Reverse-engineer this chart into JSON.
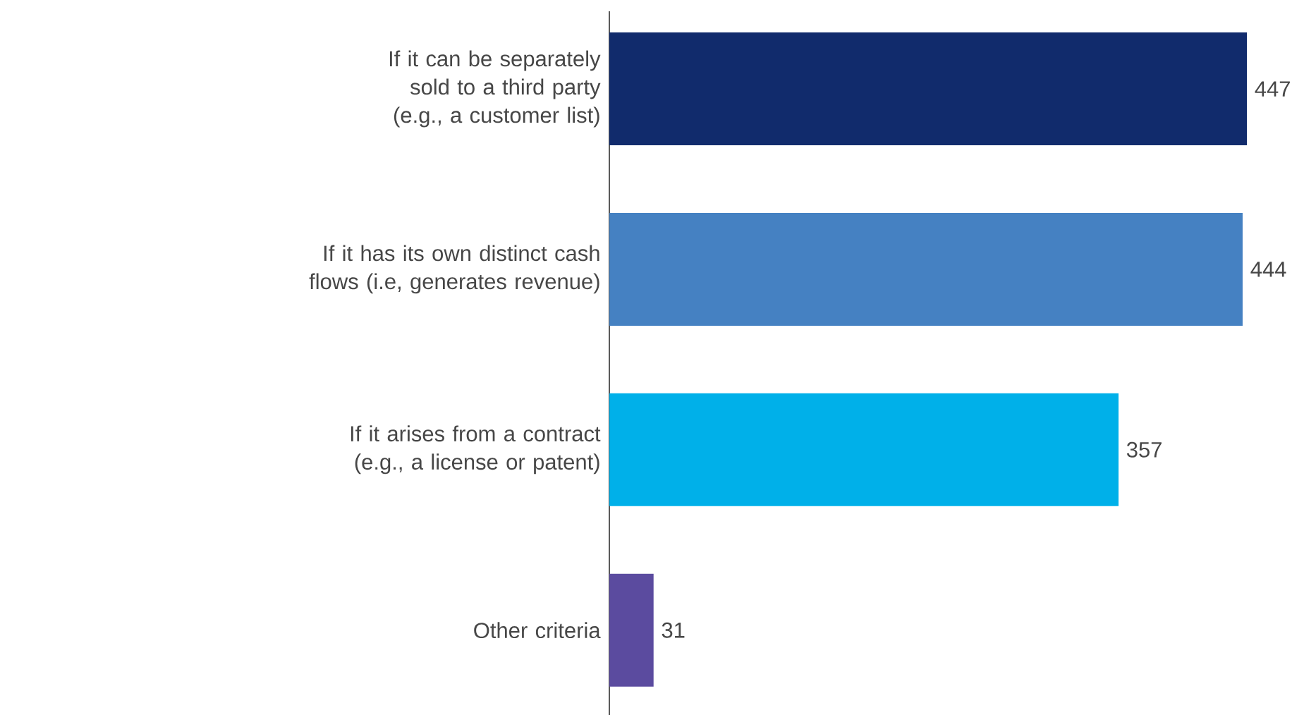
{
  "chart_data": {
    "type": "bar",
    "orientation": "horizontal",
    "data_labels": true,
    "categories": [
      "If it can be separately sold to a third party (e.g., a customer list)",
      "If it has its own distinct cash flows (i.e, generates revenue)",
      "If it arises from a contract (e.g., a license or patent)",
      "Other criteria"
    ],
    "values": [
      447,
      444,
      357,
      31
    ],
    "colors": [
      "#112b6c",
      "#4581c2",
      "#00b0e9",
      "#5b4b9f"
    ]
  }
}
